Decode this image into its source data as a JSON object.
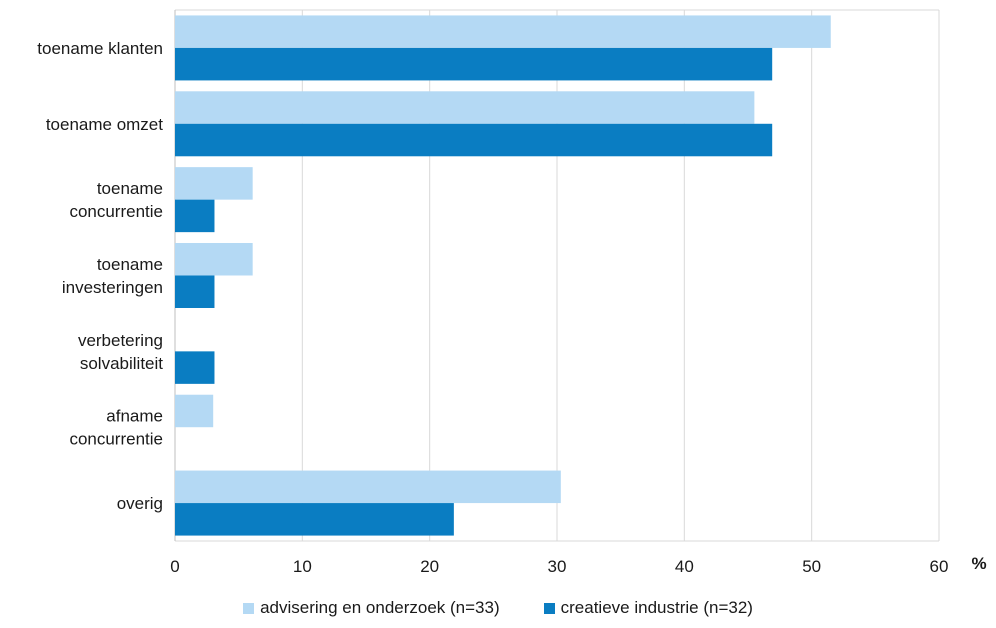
{
  "chart_data": {
    "type": "bar",
    "orientation": "horizontal",
    "categories": [
      [
        "toename klanten"
      ],
      [
        "toename omzet"
      ],
      [
        "toename",
        "concurrentie"
      ],
      [
        "toename",
        "investeringen"
      ],
      [
        "verbetering",
        "solvabiliteit"
      ],
      [
        "afname",
        "concurrentie"
      ],
      [
        "overig"
      ]
    ],
    "series": [
      {
        "name": "advisering en onderzoek (n=33)",
        "color": "#b4d9f4",
        "values": [
          51.5,
          45.5,
          6.1,
          6.1,
          0,
          3.0,
          30.3
        ]
      },
      {
        "name": "creatieve industrie (n=32)",
        "color": "#0a7dc2",
        "values": [
          46.9,
          46.9,
          3.1,
          3.1,
          3.1,
          0,
          21.9
        ]
      }
    ],
    "xlim": [
      0,
      60
    ],
    "xticks": [
      "0",
      "10",
      "20",
      "30",
      "40",
      "50",
      "60"
    ],
    "unit": "%",
    "grid": "vertical",
    "legend_position": "bottom"
  }
}
